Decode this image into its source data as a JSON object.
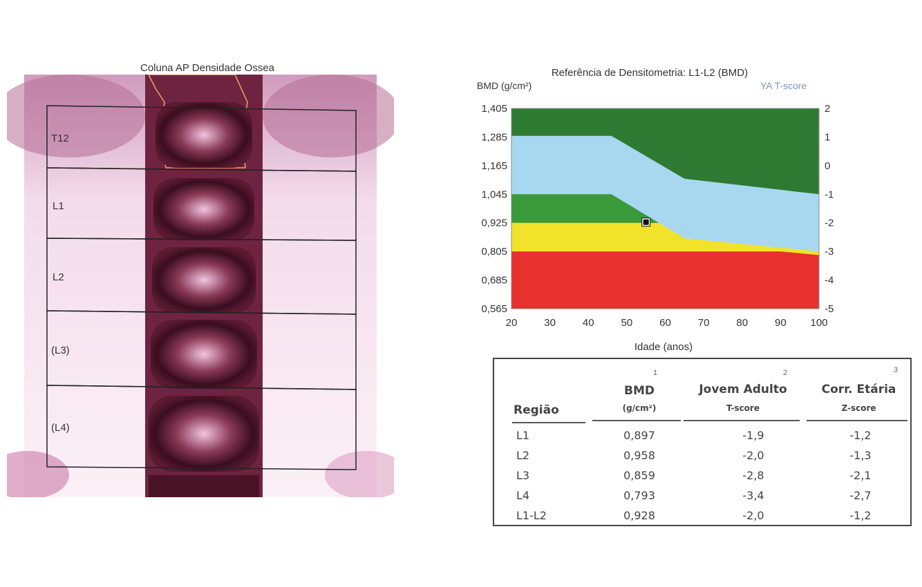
{
  "scan": {
    "title": "Coluna AP Densidade Ossea",
    "regions": [
      "T12",
      "L1",
      "L2",
      "(L3)",
      "(L4)"
    ]
  },
  "chart": {
    "title": "Referência de Densitometria: L1-L2 (BMD)",
    "y_left_label": "BMD (g/cm²)",
    "y_right_label": "YA T-score",
    "x_label": "Idade (anos)"
  },
  "chart_data": {
    "type": "area",
    "title": "Referência de Densitometria: L1-L2 (BMD)",
    "xlabel": "Idade (anos)",
    "ylabel": "BMD (g/cm²)",
    "y2label": "YA T-score",
    "xlim": [
      20,
      100
    ],
    "ylim": [
      0.565,
      1.405
    ],
    "y2lim": [
      -5,
      2
    ],
    "x_ticks": [
      "20",
      "30",
      "40",
      "50",
      "60",
      "70",
      "80",
      "90",
      "100"
    ],
    "y_ticks": [
      "1,405",
      "1,285",
      "1,165",
      "1,045",
      "0,925",
      "0,805",
      "0,685",
      "0,565"
    ],
    "y2_ticks": [
      "2",
      "1",
      "0",
      "-1",
      "-2",
      "-3",
      "-4",
      "-5"
    ],
    "bands": {
      "x": [
        20,
        46,
        65,
        100
      ],
      "ref_upper": [
        1.29,
        1.29,
        1.11,
        1.045
      ],
      "ref_lower": [
        1.045,
        1.045,
        0.86,
        0.805
      ],
      "t_minus1": 1.045,
      "t_minus2p5": 0.805,
      "green_top": 1.405
    },
    "band_colors": {
      "normal": "#2f7a32",
      "reference": "#a8d8f0",
      "osteopenia": "#3a9a3a",
      "lower_osteopenia": "#f2e22a",
      "osteoporosis": "#e8302e"
    },
    "patient_point": {
      "x": 55,
      "y": 0.928
    }
  },
  "table": {
    "headers": {
      "region": "Região",
      "bmd": "BMD",
      "bmd_unit": "(g/cm²)",
      "tscore": "Jovem Adulto",
      "tscore_sub": "T-score",
      "zscore": "Corr. Etária",
      "zscore_sub": "Z-score",
      "n1": "1",
      "n2": "2",
      "n3": "3"
    },
    "rows": [
      {
        "region": "L1",
        "bmd": "0,897",
        "tscore": "-1,9",
        "zscore": "-1,2"
      },
      {
        "region": "L2",
        "bmd": "0,958",
        "tscore": "-2,0",
        "zscore": "-1,3"
      },
      {
        "region": "L3",
        "bmd": "0,859",
        "tscore": "-2,8",
        "zscore": "-2,1"
      },
      {
        "region": "L4",
        "bmd": "0,793",
        "tscore": "-3,4",
        "zscore": "-2,7"
      },
      {
        "region": "L1-L2",
        "bmd": "0,928",
        "tscore": "-2,0",
        "zscore": "-1,2"
      }
    ]
  }
}
